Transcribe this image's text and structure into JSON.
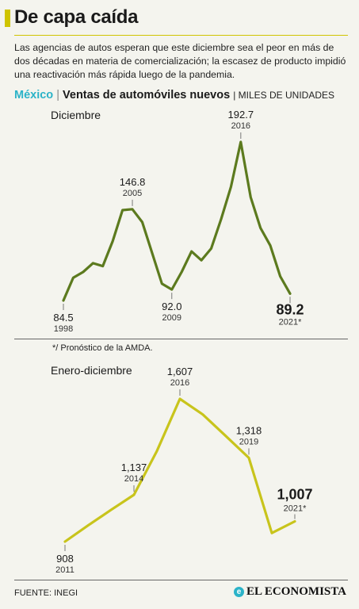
{
  "title": "De capa caída",
  "intro": "Las agencias de autos esperan que este diciembre sea el peor en más de dos décadas en materia de comercialización; la escasez de producto impidió una reactivación más rápida luego de la pandemia.",
  "subhead": {
    "country": "México",
    "separator": "|",
    "main": "Ventas de automóviles nuevos",
    "unit": "| MILES DE UNIDADES"
  },
  "chart_data": [
    {
      "type": "line",
      "title": "Diciembre",
      "color": "#5c7a1e",
      "x": [
        1998,
        1999,
        2000,
        2001,
        2002,
        2003,
        2004,
        2005,
        2006,
        2007,
        2008,
        2009,
        2010,
        2011,
        2012,
        2013,
        2014,
        2015,
        2016,
        2017,
        2018,
        2019,
        2020,
        2021
      ],
      "y": [
        84.5,
        100,
        104,
        110,
        108,
        125,
        146.2,
        146.8,
        138,
        117,
        96,
        92.0,
        104,
        118,
        112,
        120,
        140,
        162,
        192.7,
        155,
        134,
        122,
        101,
        89.2
      ],
      "annotations": [
        {
          "index": 0,
          "value": "84.5",
          "year": "1998"
        },
        {
          "index": 7,
          "value": "146.8",
          "year": "2005"
        },
        {
          "index": 11,
          "value": "92.0",
          "year": "2009"
        },
        {
          "index": 18,
          "value": "192.7",
          "year": "2016"
        },
        {
          "index": 23,
          "value": "89.2",
          "year": "2021*"
        }
      ]
    },
    {
      "type": "line",
      "title": "Enero-diciembre",
      "color": "#c8c41c",
      "x": [
        2011,
        2012,
        2013,
        2014,
        2015,
        2016,
        2017,
        2018,
        2019,
        2020,
        2021
      ],
      "y": [
        908,
        987,
        1063,
        1137,
        1352,
        1607,
        1530,
        1425,
        1318,
        950,
        1007
      ],
      "annotations": [
        {
          "index": 0,
          "value": "908",
          "year": "2011"
        },
        {
          "index": 3,
          "value": "1,137",
          "year": "2014"
        },
        {
          "index": 5,
          "value": "1,607",
          "year": "2016"
        },
        {
          "index": 8,
          "value": "1,318",
          "year": "2019"
        },
        {
          "index": 10,
          "value": "1,007",
          "year": "2021*"
        }
      ]
    }
  ],
  "footnote": "*/ Pronóstico de la AMDA.",
  "source": "FUENTE: INEGI",
  "brand": {
    "icon": "e",
    "name": "EL ECONOMISTA"
  }
}
